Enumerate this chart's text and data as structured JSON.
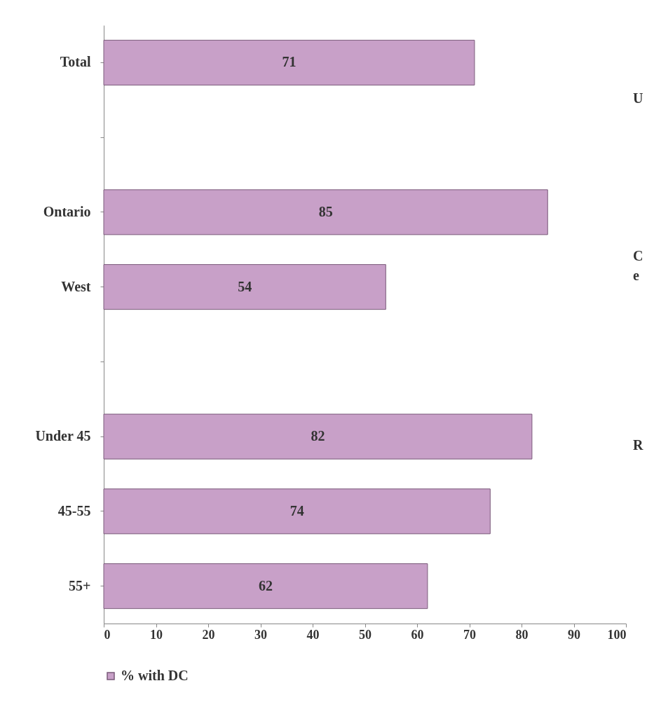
{
  "chart_data": {
    "type": "bar",
    "orientation": "horizontal",
    "categories": [
      "Total",
      null,
      "Ontario",
      "West",
      null,
      "Under 45",
      "45-55",
      "55+"
    ],
    "series": [
      {
        "name": "% with DC",
        "color": "#c8a0c8",
        "values": [
          71,
          null,
          85,
          54,
          null,
          82,
          74,
          62
        ]
      }
    ],
    "xlim": [
      0,
      100
    ],
    "xticks": [
      0,
      10,
      20,
      30,
      40,
      50,
      60,
      70,
      80,
      90,
      100
    ],
    "data_labels": true,
    "grid": false,
    "legend": "bottom",
    "annotations": [
      "U",
      "C",
      "e",
      "R"
    ]
  }
}
